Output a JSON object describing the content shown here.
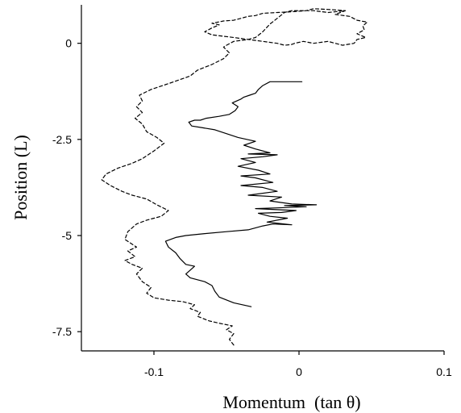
{
  "chart_data": {
    "type": "line",
    "xlabel": "Momentum  (tan θ)",
    "ylabel": "Position (L)",
    "xlim": [
      -0.15,
      0.1
    ],
    "ylim": [
      -8.0,
      1.0
    ],
    "x_ticks": [
      {
        "value": -0.1,
        "label": "-0.1"
      },
      {
        "value": 0,
        "label": "0"
      },
      {
        "value": 0.1,
        "label": "0.1"
      }
    ],
    "y_ticks": [
      {
        "value": 0,
        "label": "0"
      },
      {
        "value": -2.5,
        "label": "-2.5"
      },
      {
        "value": -5,
        "label": "-5"
      },
      {
        "value": -7.5,
        "label": "-7.5"
      }
    ],
    "grid": false,
    "series": [
      {
        "style": "dashed",
        "color": "#000000",
        "points": [
          [
            -0.045,
            -7.85
          ],
          [
            -0.048,
            -7.7
          ],
          [
            -0.045,
            -7.55
          ],
          [
            -0.05,
            -7.45
          ],
          [
            -0.046,
            -7.35
          ],
          [
            -0.055,
            -7.28
          ],
          [
            -0.062,
            -7.22
          ],
          [
            -0.07,
            -7.1
          ],
          [
            -0.068,
            -7.0
          ],
          [
            -0.075,
            -6.9
          ],
          [
            -0.072,
            -6.8
          ],
          [
            -0.08,
            -6.72
          ],
          [
            -0.09,
            -6.68
          ],
          [
            -0.1,
            -6.62
          ],
          [
            -0.105,
            -6.5
          ],
          [
            -0.102,
            -6.35
          ],
          [
            -0.108,
            -6.2
          ],
          [
            -0.112,
            -6.0
          ],
          [
            -0.108,
            -5.85
          ],
          [
            -0.115,
            -5.75
          ],
          [
            -0.12,
            -5.65
          ],
          [
            -0.113,
            -5.55
          ],
          [
            -0.118,
            -5.4
          ],
          [
            -0.112,
            -5.3
          ],
          [
            -0.12,
            -5.1
          ],
          [
            -0.118,
            -4.9
          ],
          [
            -0.112,
            -4.7
          ],
          [
            -0.105,
            -4.6
          ],
          [
            -0.095,
            -4.5
          ],
          [
            -0.09,
            -4.35
          ],
          [
            -0.098,
            -4.2
          ],
          [
            -0.105,
            -4.05
          ],
          [
            -0.115,
            -3.95
          ],
          [
            -0.122,
            -3.85
          ],
          [
            -0.13,
            -3.7
          ],
          [
            -0.136,
            -3.55
          ],
          [
            -0.133,
            -3.4
          ],
          [
            -0.125,
            -3.25
          ],
          [
            -0.115,
            -3.12
          ],
          [
            -0.108,
            -3.0
          ],
          [
            -0.1,
            -2.8
          ],
          [
            -0.093,
            -2.6
          ],
          [
            -0.098,
            -2.45
          ],
          [
            -0.105,
            -2.3
          ],
          [
            -0.108,
            -2.1
          ],
          [
            -0.113,
            -1.95
          ],
          [
            -0.108,
            -1.8
          ],
          [
            -0.112,
            -1.65
          ],
          [
            -0.108,
            -1.5
          ],
          [
            -0.11,
            -1.35
          ],
          [
            -0.102,
            -1.2
          ],
          [
            -0.09,
            -1.05
          ],
          [
            -0.075,
            -0.85
          ],
          [
            -0.07,
            -0.7
          ],
          [
            -0.06,
            -0.55
          ],
          [
            -0.052,
            -0.4
          ],
          [
            -0.048,
            -0.25
          ],
          [
            -0.052,
            -0.1
          ],
          [
            -0.05,
            -0.05
          ],
          [
            -0.045,
            0.05
          ],
          [
            -0.035,
            0.1
          ],
          [
            -0.03,
            0.15
          ],
          [
            -0.025,
            0.3
          ],
          [
            -0.02,
            0.5
          ],
          [
            -0.015,
            0.65
          ],
          [
            -0.01,
            0.8
          ],
          [
            -0.005,
            0.85
          ],
          [
            0.01,
            0.85
          ],
          [
            0.02,
            0.8
          ],
          [
            0.032,
            0.85
          ],
          [
            0.025,
            0.75
          ],
          [
            0.035,
            0.7
          ],
          [
            0.04,
            0.6
          ],
          [
            0.047,
            0.55
          ],
          [
            0.044,
            0.45
          ],
          [
            0.045,
            0.35
          ],
          [
            0.04,
            0.25
          ],
          [
            0.046,
            0.15
          ],
          [
            0.04,
            0.1
          ],
          [
            0.038,
            0.0
          ],
          [
            0.03,
            -0.05
          ],
          [
            0.025,
            0.0
          ],
          [
            0.02,
            0.05
          ],
          [
            0.01,
            0.0
          ],
          [
            0.003,
            0.05
          ],
          [
            -0.003,
            0.0
          ],
          [
            -0.005,
            -0.03
          ],
          [
            -0.01,
            -0.05
          ],
          [
            -0.015,
            0.0
          ],
          [
            -0.025,
            0.05
          ],
          [
            -0.035,
            0.1
          ],
          [
            -0.045,
            0.15
          ],
          [
            -0.06,
            0.22
          ],
          [
            -0.065,
            0.3
          ],
          [
            -0.06,
            0.4
          ],
          [
            -0.055,
            0.48
          ],
          [
            -0.06,
            0.52
          ],
          [
            -0.052,
            0.58
          ],
          [
            -0.045,
            0.6
          ],
          [
            -0.04,
            0.65
          ],
          [
            -0.035,
            0.7
          ],
          [
            -0.03,
            0.72
          ],
          [
            -0.025,
            0.78
          ],
          [
            -0.015,
            0.8
          ],
          [
            -0.005,
            0.82
          ],
          [
            0.005,
            0.85
          ],
          [
            0.01,
            0.9
          ],
          [
            0.02,
            0.88
          ],
          [
            0.032,
            0.85
          ]
        ]
      },
      {
        "style": "solid",
        "color": "#000000",
        "points": [
          [
            -0.033,
            -6.85
          ],
          [
            -0.045,
            -6.75
          ],
          [
            -0.055,
            -6.6
          ],
          [
            -0.058,
            -6.45
          ],
          [
            -0.06,
            -6.3
          ],
          [
            -0.065,
            -6.2
          ],
          [
            -0.07,
            -6.15
          ],
          [
            -0.075,
            -6.1
          ],
          [
            -0.078,
            -6.0
          ],
          [
            -0.075,
            -5.9
          ],
          [
            -0.072,
            -5.8
          ],
          [
            -0.078,
            -5.75
          ],
          [
            -0.082,
            -5.6
          ],
          [
            -0.085,
            -5.45
          ],
          [
            -0.09,
            -5.3
          ],
          [
            -0.092,
            -5.15
          ],
          [
            -0.085,
            -5.05
          ],
          [
            -0.078,
            -5.0
          ],
          [
            -0.065,
            -4.95
          ],
          [
            -0.05,
            -4.9
          ],
          [
            -0.035,
            -4.85
          ],
          [
            -0.025,
            -4.75
          ],
          [
            -0.018,
            -4.7
          ],
          [
            -0.005,
            -4.72
          ],
          [
            -0.022,
            -4.65
          ],
          [
            -0.008,
            -4.55
          ],
          [
            -0.02,
            -4.5
          ],
          [
            -0.028,
            -4.42
          ],
          [
            -0.012,
            -4.4
          ],
          [
            -0.002,
            -4.35
          ],
          [
            -0.03,
            -4.3
          ],
          [
            -0.015,
            -4.28
          ],
          [
            0.005,
            -4.25
          ],
          [
            -0.01,
            -4.22
          ],
          [
            0.012,
            -4.2
          ],
          [
            -0.005,
            -4.18
          ],
          [
            -0.02,
            -4.1
          ],
          [
            -0.012,
            -4.0
          ],
          [
            -0.035,
            -3.95
          ],
          [
            -0.015,
            -3.85
          ],
          [
            -0.025,
            -3.75
          ],
          [
            -0.04,
            -3.7
          ],
          [
            -0.018,
            -3.62
          ],
          [
            -0.03,
            -3.5
          ],
          [
            -0.04,
            -3.45
          ],
          [
            -0.02,
            -3.4
          ],
          [
            -0.028,
            -3.3
          ],
          [
            -0.042,
            -3.2
          ],
          [
            -0.03,
            -3.1
          ],
          [
            -0.04,
            -3.0
          ],
          [
            -0.025,
            -2.95
          ],
          [
            -0.015,
            -2.9
          ],
          [
            -0.035,
            -2.88
          ],
          [
            -0.02,
            -2.85
          ],
          [
            -0.03,
            -2.75
          ],
          [
            -0.038,
            -2.65
          ],
          [
            -0.03,
            -2.55
          ],
          [
            -0.042,
            -2.45
          ],
          [
            -0.05,
            -2.35
          ],
          [
            -0.058,
            -2.25
          ],
          [
            -0.066,
            -2.2
          ],
          [
            -0.074,
            -2.15
          ],
          [
            -0.076,
            -2.05
          ],
          [
            -0.072,
            -2.0
          ],
          [
            -0.068,
            -2.0
          ],
          [
            -0.064,
            -1.95
          ],
          [
            -0.055,
            -1.9
          ],
          [
            -0.048,
            -1.85
          ],
          [
            -0.044,
            -1.75
          ],
          [
            -0.042,
            -1.65
          ],
          [
            -0.046,
            -1.55
          ],
          [
            -0.04,
            -1.45
          ],
          [
            -0.038,
            -1.4
          ],
          [
            -0.034,
            -1.35
          ],
          [
            -0.03,
            -1.3
          ],
          [
            -0.028,
            -1.2
          ],
          [
            -0.025,
            -1.1
          ],
          [
            -0.02,
            -1.0
          ],
          [
            -0.01,
            -1.0
          ],
          [
            0.002,
            -1.0
          ]
        ]
      }
    ]
  }
}
